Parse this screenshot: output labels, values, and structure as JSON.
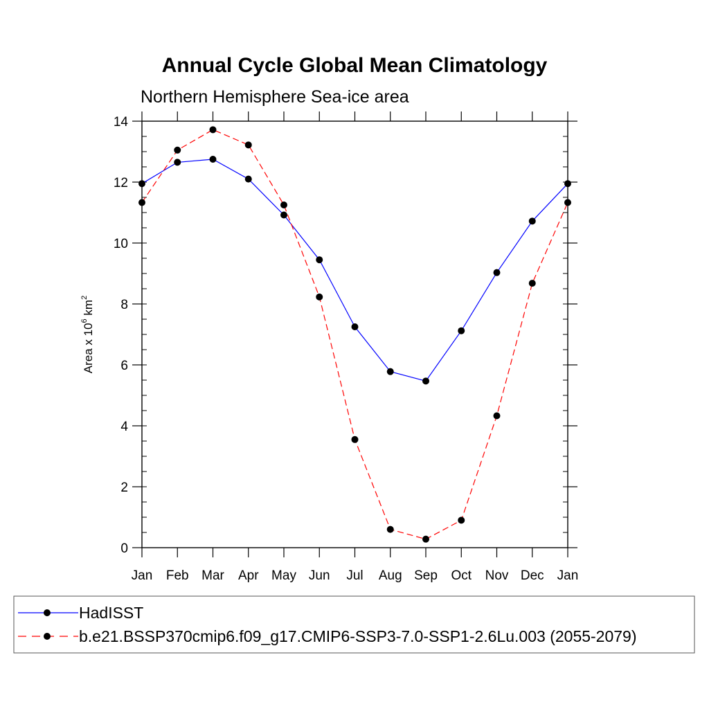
{
  "chart_data": {
    "type": "line",
    "title": "Annual Cycle Global Mean Climatology",
    "subtitle": "Northern Hemisphere Sea-ice area",
    "ylabel": {
      "prefix": "Area x 10",
      "exp1": "6",
      "mid": " km",
      "exp2": "2"
    },
    "categories": [
      "Jan",
      "Feb",
      "Mar",
      "Apr",
      "May",
      "Jun",
      "Jul",
      "Aug",
      "Sep",
      "Oct",
      "Nov",
      "Dec",
      "Jan"
    ],
    "ylim": [
      0,
      14
    ],
    "yticks": [
      0,
      2,
      4,
      6,
      8,
      10,
      12,
      14
    ],
    "grid": false,
    "legend_position": "bottom",
    "series": [
      {
        "name": "HadISST",
        "color": "#0000ff",
        "dash": "solid",
        "marker": "filled-circle",
        "values": [
          11.95,
          12.65,
          12.75,
          12.1,
          10.92,
          9.45,
          7.25,
          5.78,
          5.47,
          7.12,
          9.03,
          10.72,
          11.95
        ]
      },
      {
        "name": "b.e21.BSSP370cmip6.f09_g17.CMIP6-SSP3-7.0-SSP1-2.6Lu.003 (2055-2079)",
        "color": "#ff0000",
        "dash": "dashed",
        "marker": "filled-circle",
        "values": [
          11.33,
          13.05,
          13.72,
          13.22,
          11.25,
          8.23,
          3.55,
          0.6,
          0.28,
          0.9,
          4.33,
          8.68,
          11.33
        ]
      }
    ]
  }
}
